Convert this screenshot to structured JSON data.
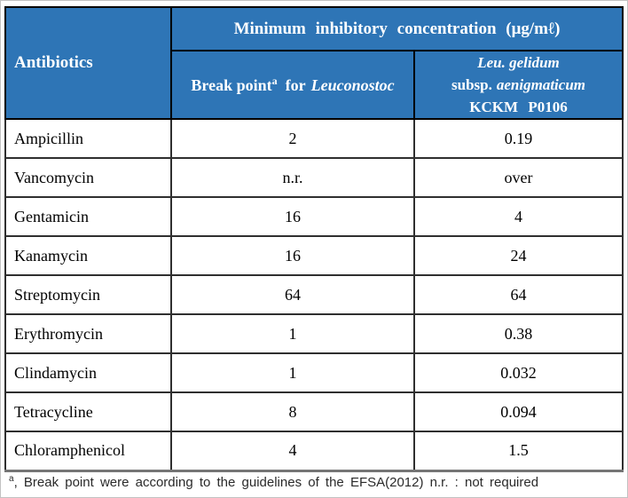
{
  "palette": {
    "header_bg": "#2E75B6",
    "header_text": "#FFFFFF",
    "grid_line": "#000000",
    "bottom_rule": "#757575",
    "frame": "#C2C2C2"
  },
  "table": {
    "antibiotics_header": "Antibiotics",
    "span_header": "Minimum inhibitory concentration (μg/mℓ)",
    "breakpoint_header": {
      "text": "Break point",
      "sup": "a",
      "mid": "for",
      "italic": "Leuconostoc"
    },
    "strain_header": {
      "line1_italic": "Leu. gelidum",
      "line2_roman": "subsp.",
      "line2_italic": "aenigmaticum",
      "line3": "KCKM P0106"
    },
    "rows": [
      {
        "antibiotic": "Ampicillin",
        "break_point": "2",
        "mic": "0.19"
      },
      {
        "antibiotic": "Vancomycin",
        "break_point": "n.r.",
        "mic": "over"
      },
      {
        "antibiotic": "Gentamicin",
        "break_point": "16",
        "mic": "4"
      },
      {
        "antibiotic": "Kanamycin",
        "break_point": "16",
        "mic": "24"
      },
      {
        "antibiotic": "Streptomycin",
        "break_point": "64",
        "mic": "64"
      },
      {
        "antibiotic": "Erythromycin",
        "break_point": "1",
        "mic": "0.38"
      },
      {
        "antibiotic": "Clindamycin",
        "break_point": "1",
        "mic": "0.032"
      },
      {
        "antibiotic": "Tetracycline",
        "break_point": "8",
        "mic": "0.094"
      },
      {
        "antibiotic": "Chloramphenicol",
        "break_point": "4",
        "mic": "1.5"
      }
    ]
  },
  "footnote": {
    "sup": "a",
    "text": ", Break point were according to the guidelines of the EFSA(2012)  n.r. : not required"
  }
}
